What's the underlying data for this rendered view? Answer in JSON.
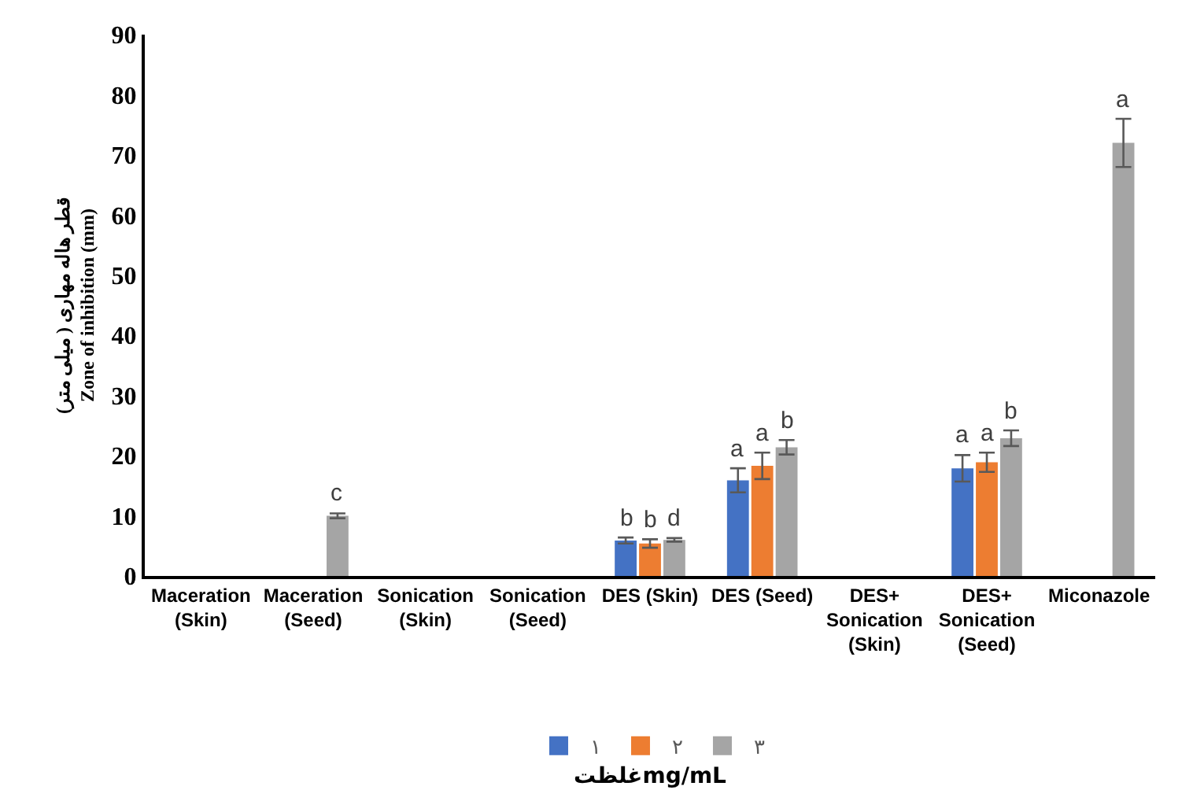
{
  "chart_data": {
    "type": "bar",
    "xlabel": "غلظتmg/mL",
    "ylabel": "قطر هاله مهاری ( میلی متر)\nZone of inhibition (mm)",
    "categories": [
      "Maceration\n(Skin)",
      "Maceration\n(Seed)",
      "Sonication\n(Skin)",
      "Sonication\n(Seed)",
      "DES (Skin)",
      "DES (Seed)",
      "DES+\nSonication\n(Skin)",
      "DES+\nSonication\n(Seed)",
      "Miconazole"
    ],
    "series": [
      {
        "name": "۱",
        "color": "#4472c4",
        "values": [
          null,
          null,
          null,
          null,
          5.9,
          15.9,
          null,
          17.9,
          null
        ],
        "errors": [
          null,
          null,
          null,
          null,
          0.5,
          2,
          null,
          2.2,
          null
        ],
        "value_labels": [
          null,
          null,
          null,
          null,
          "b",
          "a",
          null,
          "a",
          null
        ]
      },
      {
        "name": "۲",
        "color": "#ed7d31",
        "values": [
          null,
          null,
          null,
          null,
          5.4,
          18.3,
          null,
          18.9,
          null
        ],
        "errors": [
          null,
          null,
          null,
          null,
          0.7,
          2.2,
          null,
          1.6,
          null
        ],
        "value_labels": [
          null,
          null,
          null,
          null,
          "b",
          "a",
          null,
          "a",
          null
        ]
      },
      {
        "name": "۳",
        "color": "#a5a5a5",
        "values": [
          null,
          10,
          null,
          null,
          6,
          21.4,
          null,
          22.9,
          72
        ],
        "errors": [
          null,
          0.4,
          null,
          null,
          0.3,
          1.2,
          null,
          1.3,
          4
        ],
        "value_labels": [
          null,
          "c",
          null,
          null,
          "d",
          "b",
          null,
          "b",
          "a"
        ]
      }
    ],
    "ylim": [
      0,
      90
    ],
    "yticks": [
      0,
      10,
      20,
      30,
      40,
      50,
      60,
      70,
      80,
      90
    ],
    "grid": false,
    "legend": "bottom"
  }
}
